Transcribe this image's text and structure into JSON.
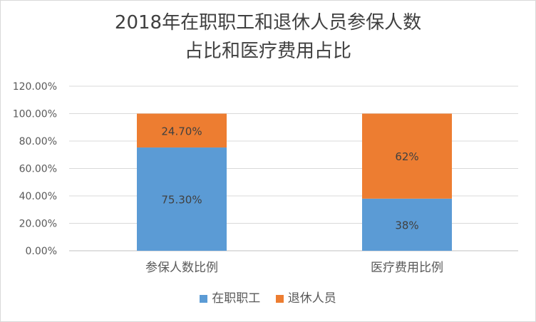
{
  "chart_data": {
    "type": "bar",
    "stacked": true,
    "title_lines": [
      "2018年在职职工和退休人员参保人数",
      "占比和医疗费用占比"
    ],
    "categories": [
      "参保人数比例",
      "医疗费用比例"
    ],
    "series": [
      {
        "name": "在职职工",
        "color": "#5b9bd5",
        "values": [
          75.3,
          38
        ],
        "labels": [
          "75.30%",
          "38%"
        ]
      },
      {
        "name": "退休人员",
        "color": "#ed7d31",
        "values": [
          24.7,
          62
        ],
        "labels": [
          "24.70%",
          "62%"
        ]
      }
    ],
    "ylim": [
      0,
      120
    ],
    "yticks": [
      "0.00%",
      "20.00%",
      "40.00%",
      "60.00%",
      "80.00%",
      "100.00%",
      "120.00%"
    ],
    "grid": true,
    "legend_position": "bottom"
  }
}
